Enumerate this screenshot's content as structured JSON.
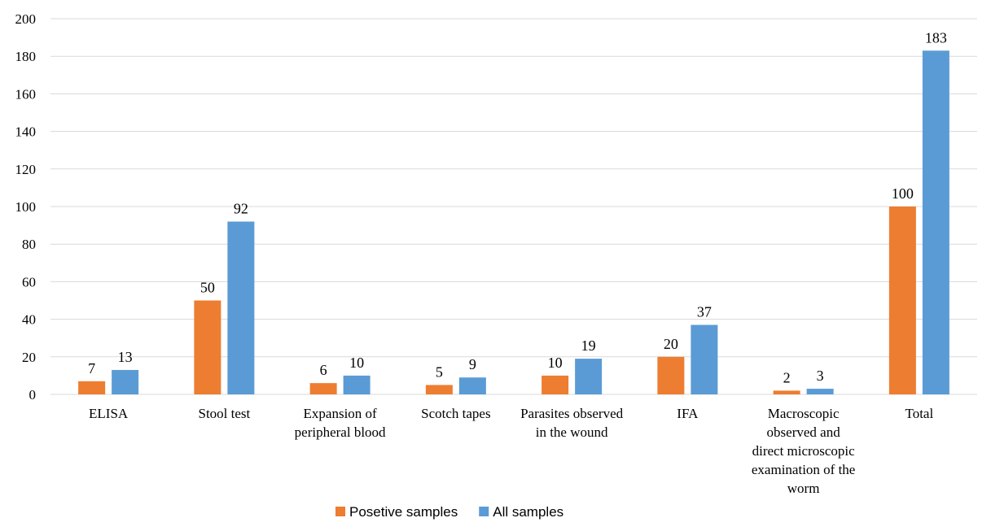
{
  "chart_data": {
    "type": "bar",
    "categories": [
      "ELISA",
      "Stool test",
      "Expansion of peripheral blood",
      "Scotch tapes",
      "Parasites observed in the wound",
      "IFA",
      "Macroscopic observed and direct microscopic examination of the worm",
      "Total"
    ],
    "series": [
      {
        "name": "Posetive samples",
        "color": "#ed7d31",
        "values": [
          7,
          50,
          6,
          5,
          10,
          20,
          2,
          100
        ]
      },
      {
        "name": "All samples",
        "color": "#5b9bd5",
        "values": [
          13,
          92,
          10,
          9,
          19,
          37,
          3,
          183
        ]
      }
    ],
    "ylim": [
      0,
      200
    ],
    "yticks": [
      0,
      20,
      40,
      60,
      80,
      100,
      120,
      140,
      160,
      180,
      200
    ],
    "grid": true,
    "legend_position": "bottom",
    "data_labels": true,
    "title": "",
    "xlabel": "",
    "ylabel": ""
  }
}
